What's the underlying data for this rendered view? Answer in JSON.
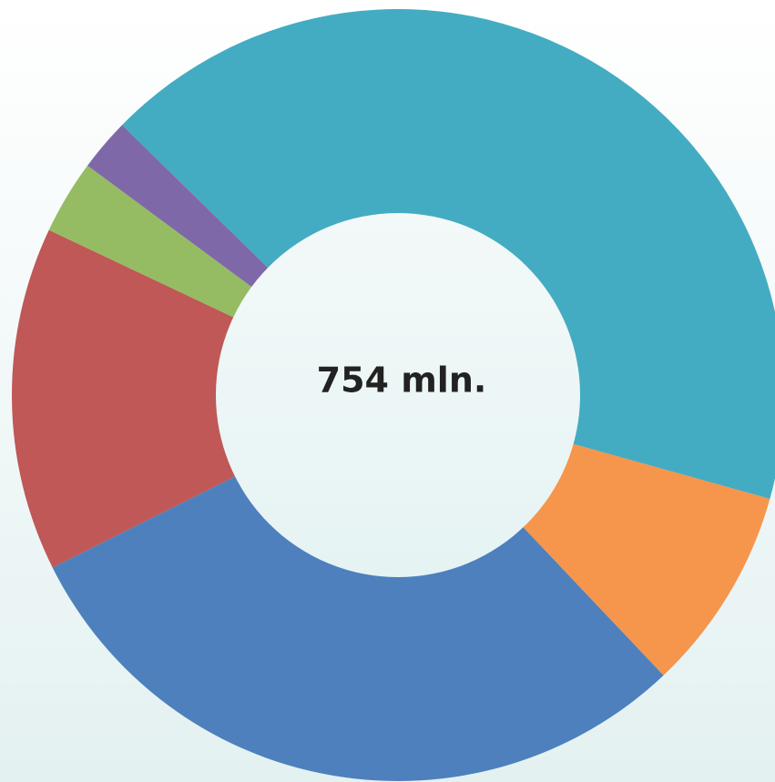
{
  "chart_data": {
    "type": "donut",
    "center_label": "754 mln.",
    "values": [
      42.0,
      8.6,
      29.7,
      14.4,
      3.1,
      2.2
    ],
    "colors": [
      "#43acc2",
      "#f6954c",
      "#4d80bd",
      "#bf5857",
      "#95bc62",
      "#7f68a8"
    ]
  }
}
